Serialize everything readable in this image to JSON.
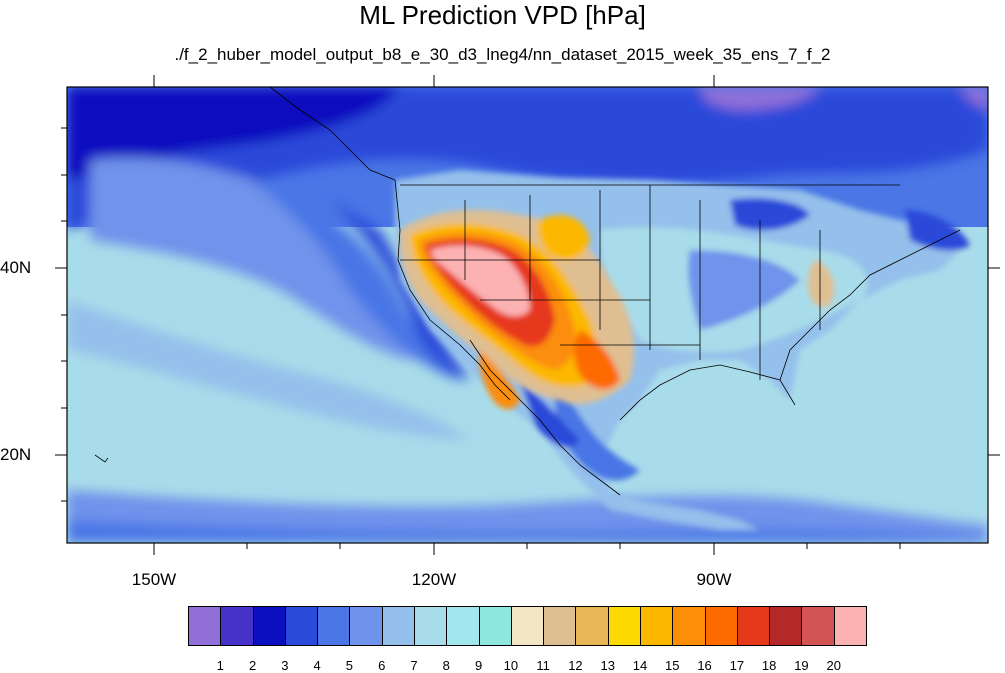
{
  "title": "ML Prediction VPD [hPa]",
  "subtitle": "./f_2_huber_model_output_b8_e_30_d3_lneg4/nn_dataset_2015_week_35_ens_7_f_2",
  "lon_labels": [
    "150W",
    "120W",
    "90W"
  ],
  "lat_labels": [
    "40N",
    "20N"
  ],
  "legend": {
    "levels": [
      "1",
      "2",
      "3",
      "4",
      "5",
      "6",
      "7",
      "8",
      "9",
      "10",
      "11",
      "12",
      "13",
      "14",
      "15",
      "16",
      "17",
      "18",
      "19",
      "20"
    ],
    "colors": [
      "#9070d8",
      "#4632c8",
      "#0b0fbf",
      "#2a4ad9",
      "#4a76e6",
      "#6f93eb",
      "#94c0eb",
      "#a9dcea",
      "#a2e6ee",
      "#8ee6dd",
      "#f2e6c4",
      "#dfbf92",
      "#e8b656",
      "#fcd900",
      "#fcb800",
      "#fc8e0a",
      "#fc6a00",
      "#e6381a",
      "#b52828",
      "#d25454",
      "#fcb2b2"
    ]
  }
}
